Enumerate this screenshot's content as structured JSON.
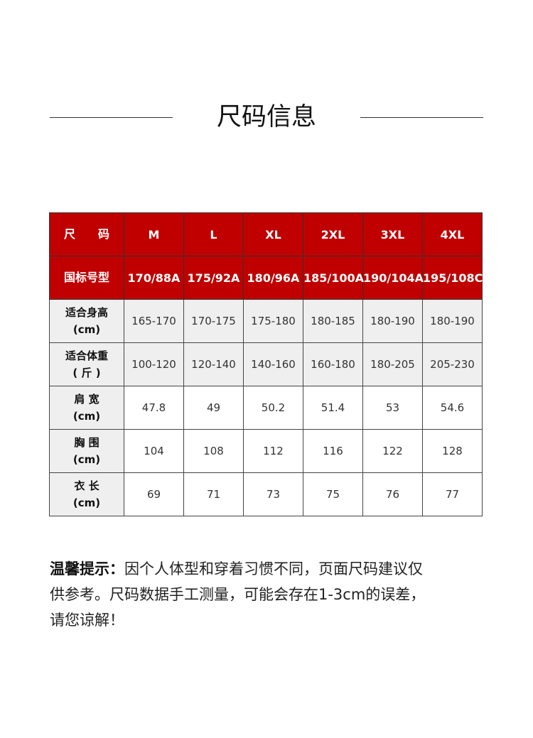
{
  "title": "尺码信息",
  "table": {
    "header_row": {
      "label": [
        "尺",
        "码"
      ],
      "values": [
        "M",
        "L",
        "XL",
        "2XL",
        "3XL",
        "4XL"
      ]
    },
    "rows": [
      {
        "label_line1": "国标号型",
        "label_line2": "",
        "values": [
          "170/88A",
          "175/92A",
          "180/96A",
          "185/100A",
          "190/104A",
          "195/108C"
        ]
      },
      {
        "label_line1": "适合身高",
        "label_line2": "(cm)",
        "values": [
          "165-170",
          "170-175",
          "175-180",
          "180-185",
          "180-190",
          "180-190"
        ]
      },
      {
        "label_line1": "适合体重",
        "label_line2": "( 斤 )",
        "values": [
          "100-120",
          "120-140",
          "140-160",
          "160-180",
          "180-205",
          "205-230"
        ]
      },
      {
        "label_line1": "肩 宽",
        "label_line2": "(cm)",
        "values": [
          "47.8",
          "49",
          "50.2",
          "51.4",
          "53",
          "54.6"
        ]
      },
      {
        "label_line1": "胸 围",
        "label_line2": "(cm)",
        "values": [
          "104",
          "108",
          "112",
          "116",
          "122",
          "128"
        ]
      },
      {
        "label_line1": "衣 长",
        "label_line2": "(cm)",
        "values": [
          "69",
          "71",
          "73",
          "75",
          "76",
          "77"
        ]
      }
    ]
  },
  "note": {
    "label": "温馨提示：",
    "lines": [
      "因个人体型和穿着习惯不同，页面尺码建议仅",
      "供参考。尺码数据手工测量，可能会存在1-3cm的误差，",
      "请您谅解！"
    ]
  },
  "colors": {
    "header_red": "#c00000",
    "row_grey": "#efefef"
  }
}
